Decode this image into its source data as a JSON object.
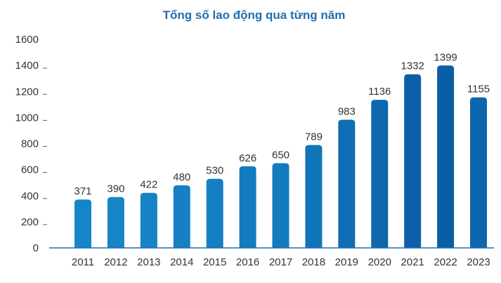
{
  "chart_data": {
    "type": "bar",
    "title": "Tổng số lao động qua từng năm",
    "xlabel": "",
    "ylabel": "",
    "categories": [
      "2011",
      "2012",
      "2013",
      "2014",
      "2015",
      "2016",
      "2017",
      "2018",
      "2019",
      "2020",
      "2021",
      "2022",
      "2023"
    ],
    "values": [
      371,
      390,
      422,
      480,
      530,
      626,
      650,
      789,
      983,
      1136,
      1332,
      1399,
      1155
    ],
    "ylim": [
      0,
      1600
    ],
    "yticks": [
      0,
      200,
      400,
      600,
      800,
      1000,
      1200,
      1400,
      1600
    ],
    "grid": false,
    "data_labels": true,
    "colors": {
      "bar_light": "#1a93d3",
      "bar_dark": "#0a5ea6",
      "title": "#1f6fb2",
      "axis": "#1f6fb2"
    }
  }
}
